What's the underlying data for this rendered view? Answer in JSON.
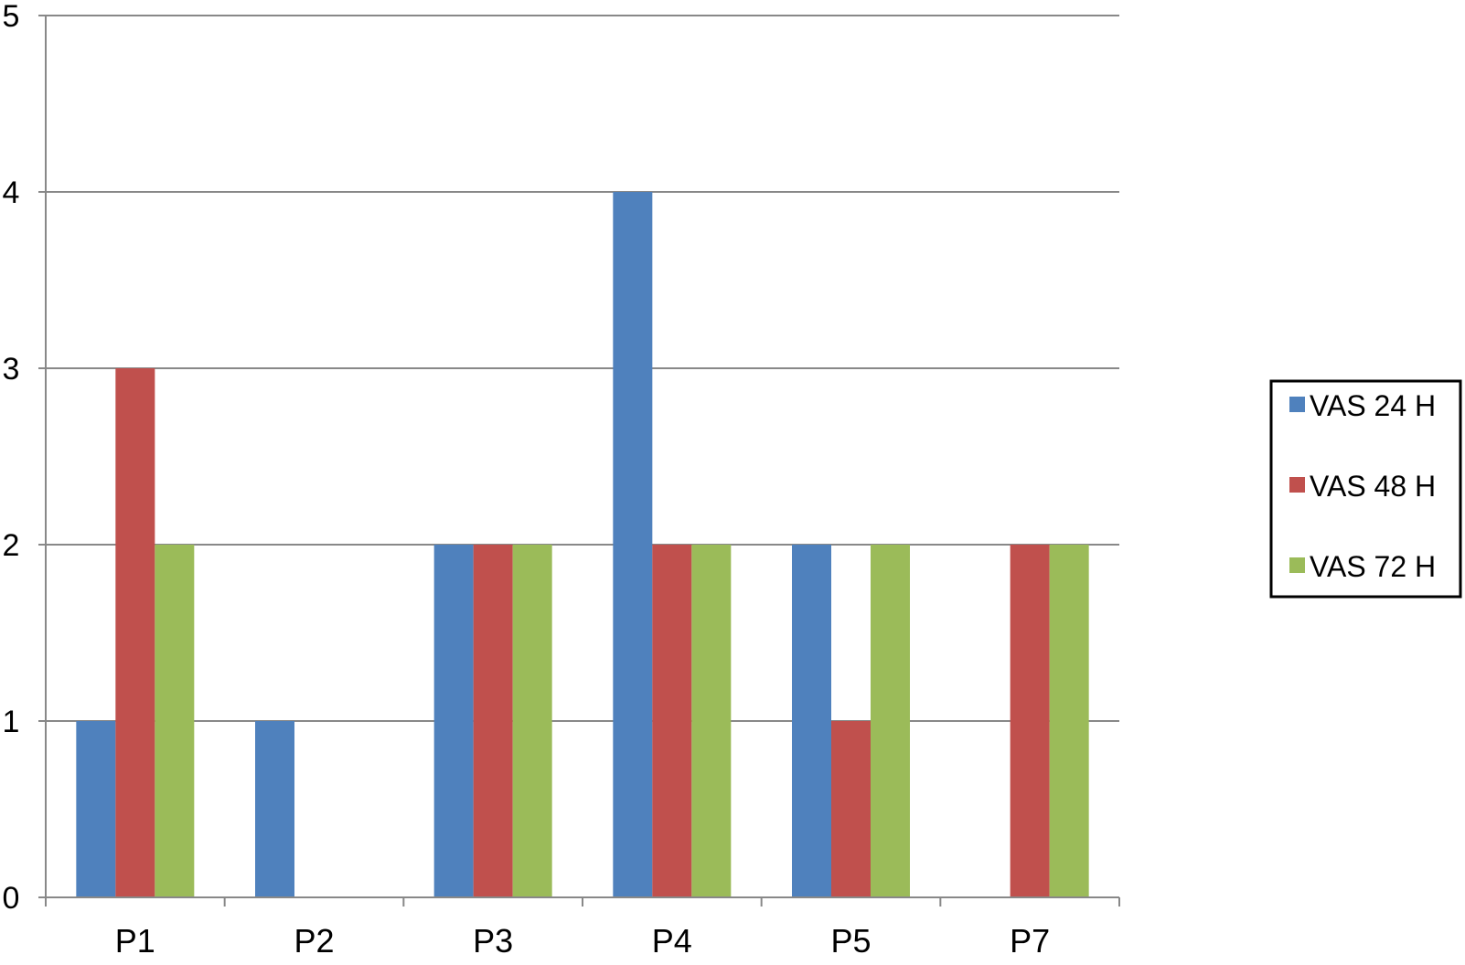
{
  "chart_data": {
    "type": "bar",
    "title": "",
    "xlabel": "",
    "ylabel": "",
    "categories": [
      "P1",
      "P2",
      "P3",
      "P4",
      "P5",
      "P7"
    ],
    "ylim": [
      0,
      5
    ],
    "yticks": [
      "0",
      "1",
      "2",
      "3",
      "4",
      "5"
    ],
    "grid": true,
    "legend_position": "right",
    "series": [
      {
        "name": "VAS 24 H",
        "color": "#4F81BD",
        "values": [
          1,
          1,
          2,
          4,
          2,
          0
        ]
      },
      {
        "name": "VAS 48 H",
        "color": "#C0504D",
        "values": [
          3,
          0,
          2,
          2,
          1,
          2
        ]
      },
      {
        "name": "VAS 72 H",
        "color": "#9BBB59",
        "values": [
          2,
          0,
          2,
          2,
          2,
          2
        ]
      }
    ]
  }
}
